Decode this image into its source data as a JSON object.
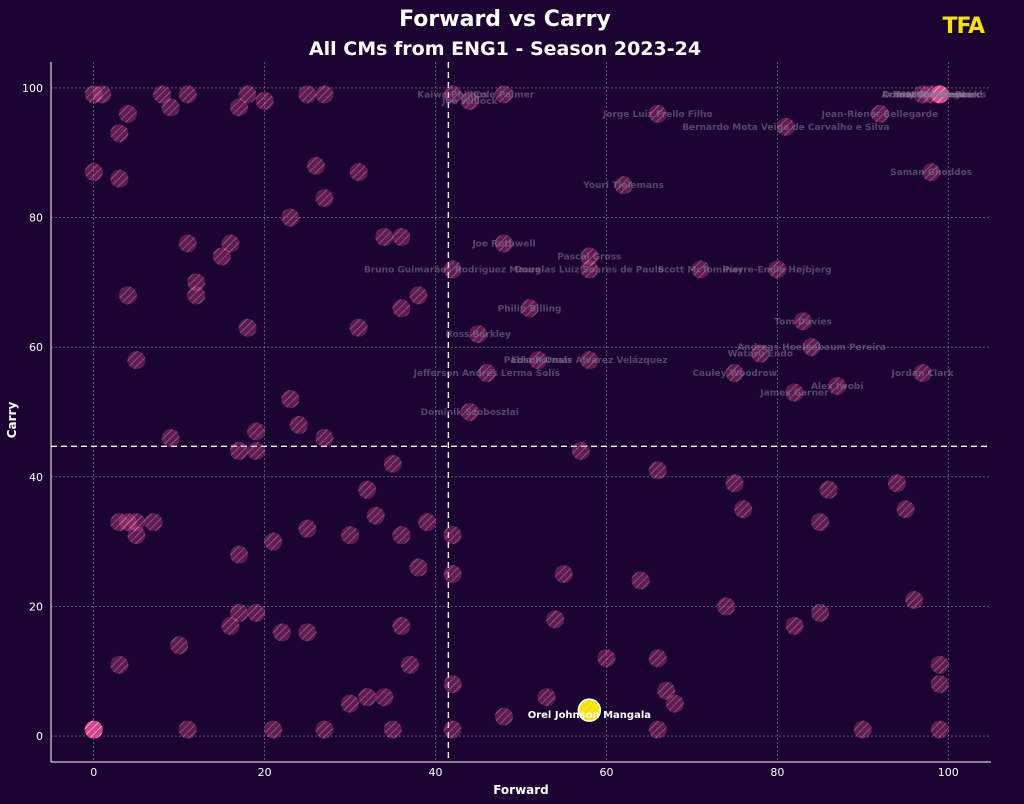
{
  "logo_text": "TFA",
  "colors": {
    "background": "#1b0432",
    "point": "#e0488e",
    "highlight": "#f5e400",
    "text": "#ffffff",
    "grid": "#d8d0e0"
  },
  "chart_data": {
    "type": "scatter",
    "title": "Forward vs Carry",
    "subtitle": "All CMs from ENG1 - Season 2023-24",
    "xlabel": "Forward",
    "ylabel": "Carry",
    "xlim": [
      -5,
      105
    ],
    "ylim": [
      -4,
      104
    ],
    "xticks": [
      0,
      20,
      40,
      60,
      80,
      100
    ],
    "yticks": [
      0,
      20,
      40,
      60,
      80,
      100
    ],
    "grid": true,
    "reference_lines": {
      "x": 41.5,
      "y": 44.7
    },
    "highlight": {
      "name": "Orel Johnson Mangala",
      "x": 58,
      "y": 4
    },
    "labeled_points": [
      {
        "name": "Kaiwa Phillips",
        "x": 42,
        "y": 99
      },
      {
        "name": "Cole Palmer",
        "x": 48,
        "y": 99
      },
      {
        "name": "Joe Willock",
        "x": 44,
        "y": 98
      },
      {
        "name": "Jorge Luiz Frello Filho",
        "x": 66,
        "y": 96
      },
      {
        "name": "Arnaut Danjuma",
        "x": 97,
        "y": 99
      },
      {
        "name": "N'Golo Kanté",
        "x": 99,
        "y": 99
      },
      {
        "name": "Teun Koopmeiners",
        "x": 99,
        "y": 99
      },
      {
        "name": "Donny van de Beek",
        "x": 98,
        "y": 99
      },
      {
        "name": "Martin Ødegaard",
        "x": 99,
        "y": 99
      },
      {
        "name": "Jean-Riener Bellegarde",
        "x": 92,
        "y": 96
      },
      {
        "name": "Bernardo Mota Veiga de Carvalho e Silva",
        "x": 81,
        "y": 94
      },
      {
        "name": "Saman Ghoddos",
        "x": 98,
        "y": 87
      },
      {
        "name": "Youri Tielemans",
        "x": 62,
        "y": 85
      },
      {
        "name": "Joe Rothwell",
        "x": 48,
        "y": 76
      },
      {
        "name": "Pascal Gross",
        "x": 58,
        "y": 74
      },
      {
        "name": "Bruno Guimarães Rodriguez Moura",
        "x": 42,
        "y": 72
      },
      {
        "name": "Douglas Luiz Soares de Paulo",
        "x": 58,
        "y": 72
      },
      {
        "name": "Scott McTominay",
        "x": 71,
        "y": 72
      },
      {
        "name": "Pierre-Emile Højbjerg",
        "x": 80,
        "y": 72
      },
      {
        "name": "Philip Billing",
        "x": 51,
        "y": 66
      },
      {
        "name": "Tom Davies",
        "x": 83,
        "y": 64
      },
      {
        "name": "Ross Barkley",
        "x": 45,
        "y": 62
      },
      {
        "name": "Andreas Hoelgebaum Pereira",
        "x": 84,
        "y": 60
      },
      {
        "name": "Wataru Endo",
        "x": 78,
        "y": 59
      },
      {
        "name": "Pablo Fornals",
        "x": 52,
        "y": 58
      },
      {
        "name": "Edson Omar Álvarez Velázquez",
        "x": 58,
        "y": 58
      },
      {
        "name": "Jefferson Andrés Lerma Solís",
        "x": 46,
        "y": 56
      },
      {
        "name": "Cauley Woodrow",
        "x": 75,
        "y": 56
      },
      {
        "name": "Jordan Clark",
        "x": 97,
        "y": 56
      },
      {
        "name": "Alex Iwobi",
        "x": 87,
        "y": 54
      },
      {
        "name": "James Garner",
        "x": 82,
        "y": 53
      },
      {
        "name": "Dominik Szoboszlai",
        "x": 44,
        "y": 50
      }
    ],
    "points": [
      {
        "x": 0,
        "y": 99
      },
      {
        "x": 1,
        "y": 99
      },
      {
        "x": 4,
        "y": 96
      },
      {
        "x": 3,
        "y": 93
      },
      {
        "x": 8,
        "y": 99
      },
      {
        "x": 9,
        "y": 97
      },
      {
        "x": 11,
        "y": 99
      },
      {
        "x": 17,
        "y": 97
      },
      {
        "x": 18,
        "y": 99
      },
      {
        "x": 20,
        "y": 98
      },
      {
        "x": 25,
        "y": 99
      },
      {
        "x": 27,
        "y": 99
      },
      {
        "x": 0,
        "y": 87
      },
      {
        "x": 3,
        "y": 86
      },
      {
        "x": 26,
        "y": 88
      },
      {
        "x": 31,
        "y": 87
      },
      {
        "x": 27,
        "y": 83
      },
      {
        "x": 23,
        "y": 80
      },
      {
        "x": 34,
        "y": 77
      },
      {
        "x": 36,
        "y": 77
      },
      {
        "x": 11,
        "y": 76
      },
      {
        "x": 16,
        "y": 76
      },
      {
        "x": 15,
        "y": 74
      },
      {
        "x": 12,
        "y": 70
      },
      {
        "x": 4,
        "y": 68
      },
      {
        "x": 12,
        "y": 68
      },
      {
        "x": 38,
        "y": 68
      },
      {
        "x": 36,
        "y": 66
      },
      {
        "x": 18,
        "y": 63
      },
      {
        "x": 31,
        "y": 63
      },
      {
        "x": 5,
        "y": 58
      },
      {
        "x": 23,
        "y": 52
      },
      {
        "x": 24,
        "y": 48
      },
      {
        "x": 9,
        "y": 46
      },
      {
        "x": 19,
        "y": 47
      },
      {
        "x": 27,
        "y": 46
      },
      {
        "x": 17,
        "y": 44
      },
      {
        "x": 19,
        "y": 44
      },
      {
        "x": 35,
        "y": 42
      },
      {
        "x": 57,
        "y": 44
      },
      {
        "x": 66,
        "y": 41
      },
      {
        "x": 75,
        "y": 39
      },
      {
        "x": 86,
        "y": 38
      },
      {
        "x": 94,
        "y": 39
      },
      {
        "x": 32,
        "y": 38
      },
      {
        "x": 76,
        "y": 35
      },
      {
        "x": 95,
        "y": 35
      },
      {
        "x": 33,
        "y": 34
      },
      {
        "x": 3,
        "y": 33
      },
      {
        "x": 4,
        "y": 33
      },
      {
        "x": 5,
        "y": 33
      },
      {
        "x": 7,
        "y": 33
      },
      {
        "x": 5,
        "y": 31
      },
      {
        "x": 25,
        "y": 32
      },
      {
        "x": 39,
        "y": 33
      },
      {
        "x": 85,
        "y": 33
      },
      {
        "x": 30,
        "y": 31
      },
      {
        "x": 36,
        "y": 31
      },
      {
        "x": 42,
        "y": 31
      },
      {
        "x": 21,
        "y": 30
      },
      {
        "x": 17,
        "y": 28
      },
      {
        "x": 38,
        "y": 26
      },
      {
        "x": 42,
        "y": 25
      },
      {
        "x": 55,
        "y": 25
      },
      {
        "x": 64,
        "y": 24
      },
      {
        "x": 96,
        "y": 21
      },
      {
        "x": 74,
        "y": 20
      },
      {
        "x": 17,
        "y": 19
      },
      {
        "x": 19,
        "y": 19
      },
      {
        "x": 85,
        "y": 19
      },
      {
        "x": 54,
        "y": 18
      },
      {
        "x": 16,
        "y": 17
      },
      {
        "x": 36,
        "y": 17
      },
      {
        "x": 82,
        "y": 17
      },
      {
        "x": 22,
        "y": 16
      },
      {
        "x": 25,
        "y": 16
      },
      {
        "x": 10,
        "y": 14
      },
      {
        "x": 60,
        "y": 12
      },
      {
        "x": 66,
        "y": 12
      },
      {
        "x": 3,
        "y": 11
      },
      {
        "x": 37,
        "y": 11
      },
      {
        "x": 99,
        "y": 11
      },
      {
        "x": 42,
        "y": 8
      },
      {
        "x": 99,
        "y": 8
      },
      {
        "x": 67,
        "y": 7
      },
      {
        "x": 32,
        "y": 6
      },
      {
        "x": 34,
        "y": 6
      },
      {
        "x": 53,
        "y": 6
      },
      {
        "x": 30,
        "y": 5
      },
      {
        "x": 68,
        "y": 5
      },
      {
        "x": 48,
        "y": 3
      },
      {
        "x": 11,
        "y": 1
      },
      {
        "x": 21,
        "y": 1
      },
      {
        "x": 27,
        "y": 1
      },
      {
        "x": 35,
        "y": 1
      },
      {
        "x": 42,
        "y": 1
      },
      {
        "x": 66,
        "y": 1
      },
      {
        "x": 90,
        "y": 1
      },
      {
        "x": 99,
        "y": 1
      },
      {
        "x": 0,
        "y": 1
      }
    ]
  }
}
